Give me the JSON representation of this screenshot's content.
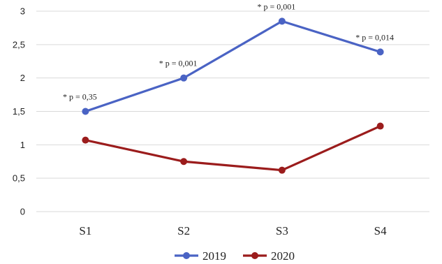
{
  "chart_data": {
    "type": "line",
    "categories": [
      "S1",
      "S2",
      "S3",
      "S4"
    ],
    "y_ticks": [
      "0",
      "0,5",
      "1",
      "1,5",
      "2",
      "2,5",
      "3"
    ],
    "ylim": [
      0,
      3
    ],
    "grid": true,
    "legend_position": "bottom",
    "series": [
      {
        "name": "2019",
        "color": "#4a63c4",
        "values": [
          1.5,
          2.0,
          2.85,
          2.39
        ],
        "annotations": [
          "* p = 0,35",
          "* p = 0,001",
          "* p = 0,001",
          "* p = 0,014"
        ]
      },
      {
        "name": "2020",
        "color": "#9b1c1c",
        "values": [
          1.07,
          0.75,
          0.62,
          1.28
        ]
      }
    ]
  }
}
